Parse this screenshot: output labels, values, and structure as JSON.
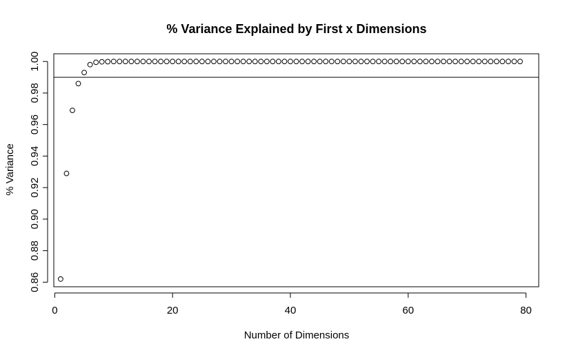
{
  "chart_data": {
    "type": "scatter",
    "title": "% Variance Explained by First x Dimensions",
    "xlabel": "Number of Dimensions",
    "ylabel": "% Variance",
    "xlim": [
      -0.16,
      82.16
    ],
    "ylim": [
      0.8571,
      1.0049
    ],
    "x_ticks": [
      0,
      20,
      40,
      60,
      80
    ],
    "x_tick_labels": [
      "0",
      "20",
      "40",
      "60",
      "80"
    ],
    "y_ticks": [
      0.86,
      0.88,
      0.9,
      0.92,
      0.94,
      0.96,
      0.98,
      1.0
    ],
    "y_tick_labels": [
      "0.86",
      "0.88",
      "0.90",
      "0.92",
      "0.94",
      "0.96",
      "0.98",
      "1.00"
    ],
    "reference_line_y": 0.99,
    "grid": false,
    "legend": false,
    "x": [
      1,
      2,
      3,
      4,
      5,
      6,
      7,
      8,
      9,
      10,
      11,
      12,
      13,
      14,
      15,
      16,
      17,
      18,
      19,
      20,
      21,
      22,
      23,
      24,
      25,
      26,
      27,
      28,
      29,
      30,
      31,
      32,
      33,
      34,
      35,
      36,
      37,
      38,
      39,
      40,
      41,
      42,
      43,
      44,
      45,
      46,
      47,
      48,
      49,
      50,
      51,
      52,
      53,
      54,
      55,
      56,
      57,
      58,
      59,
      60,
      61,
      62,
      63,
      64,
      65,
      66,
      67,
      68,
      69,
      70,
      71,
      72,
      73,
      74,
      75,
      76,
      77,
      78,
      79
    ],
    "y": [
      0.862,
      0.929,
      0.969,
      0.986,
      0.993,
      0.998,
      0.9995,
      0.9998,
      0.9999,
      1,
      1,
      1,
      1,
      1,
      1,
      1,
      1,
      1,
      1,
      1,
      1,
      1,
      1,
      1,
      1,
      1,
      1,
      1,
      1,
      1,
      1,
      1,
      1,
      1,
      1,
      1,
      1,
      1,
      1,
      1,
      1,
      1,
      1,
      1,
      1,
      1,
      1,
      1,
      1,
      1,
      1,
      1,
      1,
      1,
      1,
      1,
      1,
      1,
      1,
      1,
      1,
      1,
      1,
      1,
      1,
      1,
      1,
      1,
      1,
      1,
      1,
      1,
      1,
      1,
      1,
      1,
      1,
      1,
      1
    ]
  }
}
